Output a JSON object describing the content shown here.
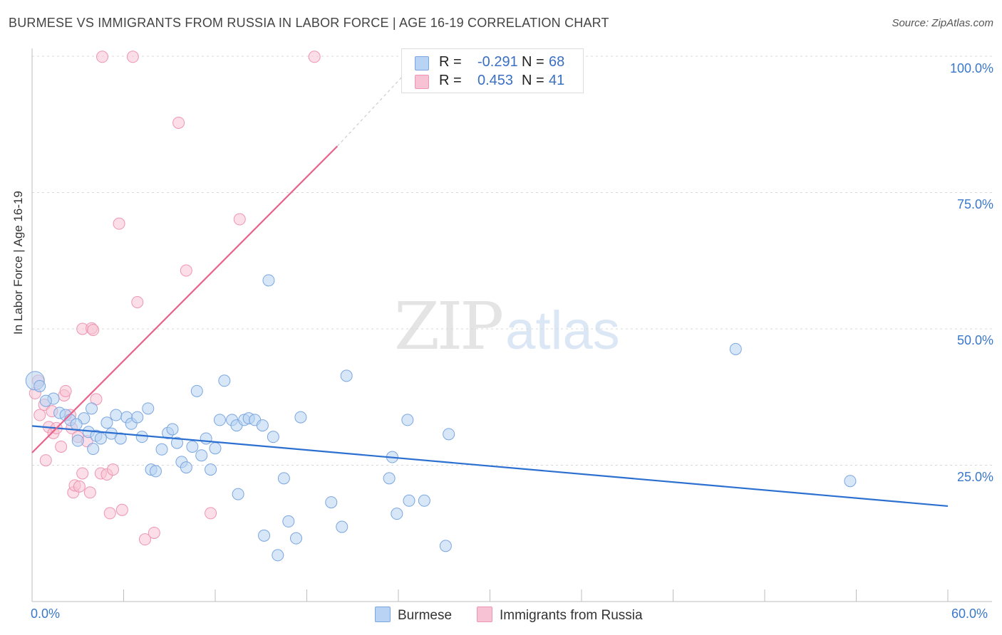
{
  "title": "BURMESE VS IMMIGRANTS FROM RUSSIA IN LABOR FORCE | AGE 16-19 CORRELATION CHART",
  "source": "Source: ZipAtlas.com",
  "watermark": {
    "zip": "ZIP",
    "atlas": "atlas"
  },
  "legend": {
    "series1": {
      "r_label": "R =",
      "r_value": "-0.291",
      "n_label": "N =",
      "n_value": "68"
    },
    "series2": {
      "r_label": "R =",
      "r_value": "0.453",
      "n_label": "N =",
      "n_value": "41"
    }
  },
  "colors": {
    "burmese_fill": "#b8d3f3",
    "burmese_stroke": "#7aa6e0",
    "burmese_line": "#2b6fd1",
    "russia_fill": "#f7c3d4",
    "russia_stroke": "#ee95b2",
    "russia_line": "#e8628b",
    "tick_text": "#3a78c9"
  },
  "chart_data": {
    "type": "scatter",
    "title": "BURMESE VS IMMIGRANTS FROM RUSSIA IN LABOR FORCE | AGE 16-19 CORRELATION CHART",
    "xlabel": "",
    "ylabel": "In Labor Force | Age 16-19",
    "xlim": [
      0,
      60
    ],
    "ylim": [
      0,
      100
    ],
    "x_tick_labels": [
      "0.0%",
      "60.0%"
    ],
    "y_ticks": [
      25,
      50,
      75,
      100
    ],
    "y_tick_labels": [
      "25.0%",
      "50.0%",
      "75.0%",
      "100.0%"
    ],
    "grid": true,
    "legend_position": "top-center",
    "series": [
      {
        "name": "Burmese",
        "r": -0.291,
        "n": 68,
        "trend": {
          "x0": 0,
          "y0": 32.2,
          "x1": 60,
          "y1": 17.5
        },
        "points": [
          [
            0.2,
            40.5
          ],
          [
            0.5,
            39.5
          ],
          [
            1.4,
            37.2
          ],
          [
            1.8,
            34.6
          ],
          [
            2.2,
            34.2
          ],
          [
            2.5,
            33.3
          ],
          [
            3.0,
            29.5
          ],
          [
            3.4,
            33.6
          ],
          [
            3.7,
            31.1
          ],
          [
            3.9,
            35.4
          ],
          [
            4.2,
            30.4
          ],
          [
            4.5,
            29.9
          ],
          [
            4.9,
            32.8
          ],
          [
            5.2,
            30.8
          ],
          [
            5.5,
            34.2
          ],
          [
            5.8,
            29.9
          ],
          [
            6.2,
            33.8
          ],
          [
            6.5,
            32.6
          ],
          [
            6.9,
            33.8
          ],
          [
            7.2,
            30.2
          ],
          [
            7.6,
            35.4
          ],
          [
            7.8,
            24.2
          ],
          [
            8.1,
            23.9
          ],
          [
            8.5,
            27.9
          ],
          [
            8.9,
            30.9
          ],
          [
            9.2,
            31.6
          ],
          [
            9.5,
            29.1
          ],
          [
            9.8,
            25.6
          ],
          [
            10.1,
            24.6
          ],
          [
            10.5,
            28.4
          ],
          [
            10.8,
            38.6
          ],
          [
            11.1,
            26.8
          ],
          [
            11.4,
            29.9
          ],
          [
            11.7,
            24.2
          ],
          [
            12.0,
            28.1
          ],
          [
            12.3,
            33.3
          ],
          [
            12.6,
            40.5
          ],
          [
            13.1,
            33.3
          ],
          [
            13.4,
            32.3
          ],
          [
            13.5,
            19.7
          ],
          [
            13.9,
            33.3
          ],
          [
            14.2,
            33.6
          ],
          [
            14.6,
            33.3
          ],
          [
            15.1,
            32.3
          ],
          [
            15.2,
            12.1
          ],
          [
            15.5,
            58.9
          ],
          [
            15.8,
            30.2
          ],
          [
            16.1,
            8.5
          ],
          [
            16.5,
            22.6
          ],
          [
            16.8,
            14.7
          ],
          [
            17.3,
            11.6
          ],
          [
            17.6,
            33.8
          ],
          [
            19.6,
            18.2
          ],
          [
            20.3,
            13.7
          ],
          [
            20.6,
            41.4
          ],
          [
            23.4,
            22.6
          ],
          [
            23.6,
            26.5
          ],
          [
            23.9,
            16.1
          ],
          [
            24.6,
            33.3
          ],
          [
            24.7,
            18.5
          ],
          [
            25.7,
            18.5
          ],
          [
            27.1,
            10.2
          ],
          [
            27.3,
            30.7
          ],
          [
            46.1,
            46.3
          ],
          [
            53.6,
            22.1
          ],
          [
            0.9,
            36.8
          ],
          [
            2.9,
            32.5
          ],
          [
            4.0,
            28.0
          ]
        ]
      },
      {
        "name": "Immigrants from Russia",
        "r": 0.453,
        "n": 41,
        "trend": {
          "x0": 0,
          "y0": 27.3,
          "x1": 20.0,
          "y1": 83.5
        },
        "trend_extension": {
          "x0": 20.0,
          "y0": 83.5,
          "x1": 24.5,
          "y1": 97.0
        },
        "points": [
          [
            0.2,
            38.2
          ],
          [
            0.4,
            40.5
          ],
          [
            0.5,
            34.2
          ],
          [
            0.8,
            36.1
          ],
          [
            0.9,
            25.9
          ],
          [
            1.1,
            32.0
          ],
          [
            1.3,
            34.9
          ],
          [
            1.4,
            30.9
          ],
          [
            1.6,
            31.8
          ],
          [
            1.9,
            28.4
          ],
          [
            2.1,
            37.8
          ],
          [
            2.2,
            38.6
          ],
          [
            2.5,
            34.2
          ],
          [
            2.6,
            31.8
          ],
          [
            2.7,
            20.0
          ],
          [
            2.8,
            21.3
          ],
          [
            3.0,
            30.2
          ],
          [
            3.1,
            21.1
          ],
          [
            3.3,
            23.5
          ],
          [
            3.6,
            29.4
          ],
          [
            3.8,
            20.0
          ],
          [
            3.3,
            50.0
          ],
          [
            3.9,
            50.1
          ],
          [
            4.0,
            49.8
          ],
          [
            4.2,
            37.1
          ],
          [
            4.5,
            23.5
          ],
          [
            4.6,
            99.9
          ],
          [
            4.9,
            23.3
          ],
          [
            5.1,
            16.2
          ],
          [
            5.3,
            24.2
          ],
          [
            5.7,
            69.3
          ],
          [
            5.9,
            16.8
          ],
          [
            6.6,
            99.9
          ],
          [
            6.9,
            54.9
          ],
          [
            7.4,
            11.4
          ],
          [
            8.0,
            12.6
          ],
          [
            9.6,
            87.8
          ],
          [
            10.1,
            60.7
          ],
          [
            11.7,
            16.2
          ],
          [
            13.6,
            70.1
          ],
          [
            18.5,
            99.9
          ]
        ]
      }
    ]
  },
  "bottom_legend": {
    "series1": "Burmese",
    "series2": "Immigrants from Russia"
  }
}
